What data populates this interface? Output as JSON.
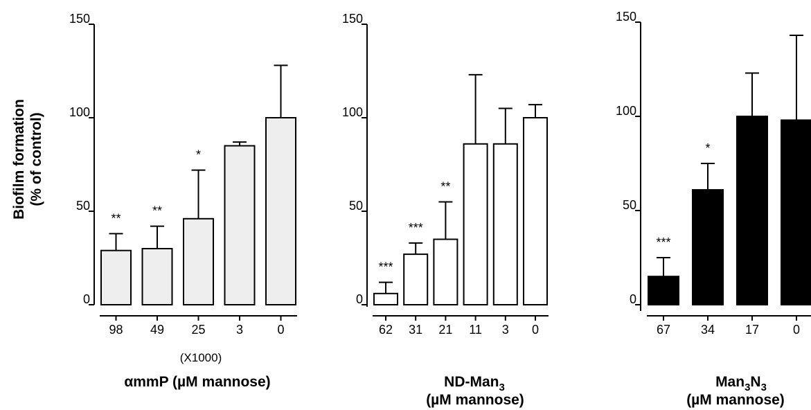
{
  "ylabel_line1": "Biofilm formation",
  "ylabel_line2": "(% of control)",
  "chart_data": [
    {
      "type": "bar",
      "ylim": [
        0,
        150
      ],
      "yticks": [
        "0",
        "50",
        "100",
        "150"
      ],
      "categories": [
        "98",
        "49",
        "25",
        "3",
        "0"
      ],
      "values": [
        29,
        30,
        46,
        85,
        100
      ],
      "errors": [
        9,
        12,
        26,
        2,
        28
      ],
      "significance": [
        "**",
        "**",
        "*",
        "",
        ""
      ],
      "unit_note": "(X1000)",
      "xlabel": "αmmP (µM mannose)",
      "bar_color": "#eeeeee"
    },
    {
      "type": "bar",
      "ylim": [
        0,
        150
      ],
      "yticks": [
        "0",
        "50",
        "100",
        "150"
      ],
      "categories": [
        "62",
        "31",
        "21",
        "11",
        "3",
        "0"
      ],
      "values": [
        6,
        27,
        35,
        86,
        86,
        100
      ],
      "errors": [
        6,
        6,
        20,
        37,
        19,
        7
      ],
      "significance": [
        "***",
        "***",
        "**",
        "",
        "",
        ""
      ],
      "xlabel_line1": "ND-Man",
      "xlabel_sub1": "3",
      "xlabel_line2": "(µM mannose)",
      "bar_color": "#ffffff"
    },
    {
      "type": "bar",
      "ylim": [
        0,
        150
      ],
      "yticks": [
        "0",
        "50",
        "100",
        "150"
      ],
      "categories": [
        "67",
        "34",
        "17",
        "0"
      ],
      "values": [
        15,
        61,
        100,
        98
      ],
      "errors": [
        10,
        14,
        23,
        45
      ],
      "significance": [
        "***",
        "*",
        "",
        ""
      ],
      "xlabel_part1": "Man",
      "xlabel_sub1": "3",
      "xlabel_part2": "N",
      "xlabel_sub2": "3",
      "xlabel_line2": "(µM mannose)",
      "bar_color": "#000000"
    }
  ]
}
